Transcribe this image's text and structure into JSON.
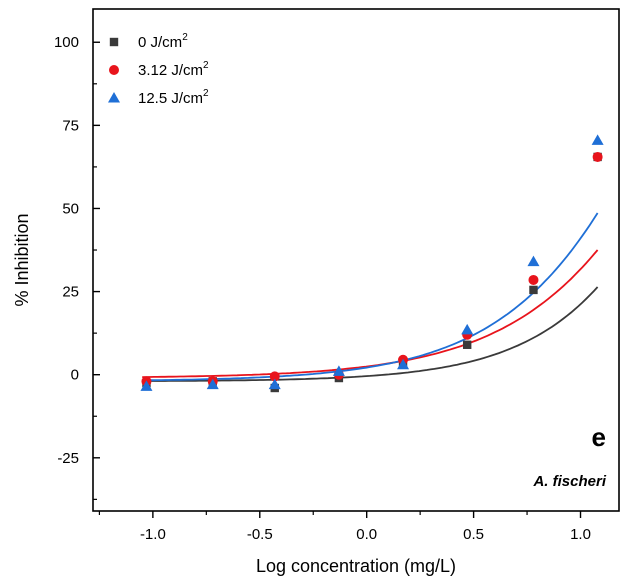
{
  "chart_data": {
    "type": "scatter",
    "xlabel": "Log concentration (mg/L)",
    "ylabel": "% Inhibition",
    "xlim": [
      -1.28,
      1.18
    ],
    "ylim": [
      -41,
      110
    ],
    "x_ticks": [
      -1.0,
      -0.5,
      0.0,
      0.5,
      1.0
    ],
    "x_tick_labels": [
      "-1.0",
      "-0.5",
      "0.0",
      "0.5",
      "1.0"
    ],
    "y_ticks": [
      -25,
      0,
      25,
      50,
      75,
      100
    ],
    "y_tick_labels": [
      "-25",
      "0",
      "25",
      "50",
      "75",
      "100"
    ],
    "grid": false,
    "legend_position": "top-left",
    "panel_label": "e",
    "annotation": "A. fischeri",
    "series": [
      {
        "name": "0 J/cm",
        "unit_superscript": "2",
        "marker": "square",
        "color": "#3a3a3a",
        "x": [
          -1.03,
          -0.72,
          -0.43,
          -0.13,
          0.17,
          0.47,
          0.78,
          1.08
        ],
        "y": [
          -2.5,
          -2,
          -4,
          -1,
          3.5,
          9,
          25.5,
          65.5
        ],
        "fit": {
          "bottom": -2,
          "top": 300,
          "log_ec50": 1.9,
          "hill": 1.2
        }
      },
      {
        "name": "3.12 J/cm",
        "unit_superscript": "2",
        "marker": "circle",
        "color": "#e8141c",
        "x": [
          -1.03,
          -0.72,
          -0.43,
          -0.13,
          0.17,
          0.47,
          0.78,
          1.08
        ],
        "y": [
          -2,
          -2,
          -0.5,
          0,
          4.5,
          12,
          28.5,
          65.5
        ],
        "fit": {
          "bottom": -1,
          "top": 250,
          "log_ec50": 1.8,
          "hill": 1.03
        }
      },
      {
        "name": "12.5 J/cm",
        "unit_superscript": "2",
        "marker": "triangle",
        "color": "#1f6fd6",
        "x": [
          -1.03,
          -0.72,
          -0.43,
          -0.13,
          0.17,
          0.47,
          0.78,
          1.08
        ],
        "y": [
          -3.5,
          -3,
          -3,
          1,
          3,
          13.5,
          34,
          70.5
        ],
        "fit": {
          "bottom": -2,
          "top": 250,
          "log_ec50": 1.63,
          "hill": 1.09
        }
      }
    ]
  }
}
